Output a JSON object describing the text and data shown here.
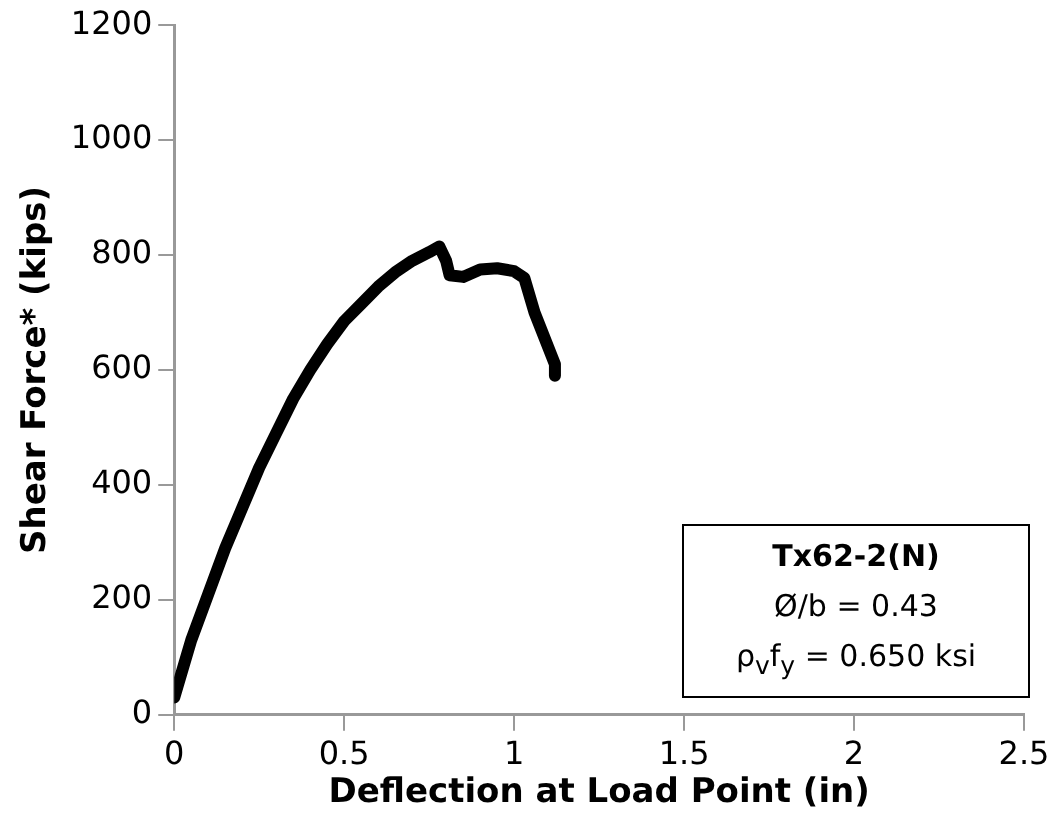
{
  "chart_data": {
    "type": "line",
    "xlabel": "Deflection at Load Point (in)",
    "ylabel": "Shear Force* (kips)",
    "annotations": [
      "Tx62-2(N)",
      "Ø/b = 0.43",
      "ρ$_{v}$f$_{y}$ = 0.650 ksi"
    ],
    "xlim": [
      0,
      2.5
    ],
    "xticks": [
      0,
      0.5,
      1,
      1.5,
      2,
      2.5
    ],
    "ylim": [
      0,
      1200
    ],
    "yticks": [
      0,
      200,
      400,
      600,
      800,
      1000,
      1200
    ],
    "grid": false,
    "legend": false,
    "marker": "none",
    "line_style": "solid",
    "series": [
      {
        "color": "#000000",
        "x": [
          0,
          0.05,
          0.1,
          0.15,
          0.2,
          0.25,
          0.3,
          0.35,
          0.4,
          0.45,
          0.5,
          0.55,
          0.6,
          0.65,
          0.7,
          0.75,
          0.78,
          0.8,
          0.81,
          0.85,
          0.9,
          0.95,
          1.0,
          1.03,
          1.06,
          1.1,
          1.12,
          1.12
        ],
        "values": [
          30,
          130,
          210,
          290,
          360,
          430,
          490,
          550,
          600,
          645,
          685,
          715,
          745,
          770,
          790,
          805,
          815,
          790,
          765,
          762,
          775,
          777,
          772,
          760,
          700,
          640,
          610,
          590
        ]
      }
    ]
  }
}
